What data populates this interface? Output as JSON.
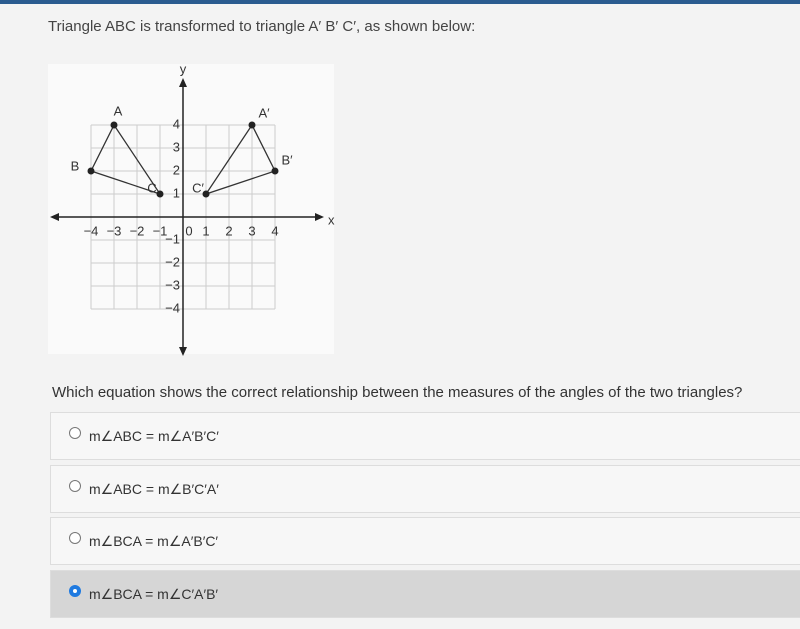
{
  "header": {
    "title": "Triangle ABC is transformed to triangle A′ B′ C′, as shown below:"
  },
  "graph": {
    "x_label": "x",
    "y_label": "y",
    "xticks": [
      {
        "value": -4,
        "label": "−4"
      },
      {
        "value": -3,
        "label": "−3"
      },
      {
        "value": -2,
        "label": "−2"
      },
      {
        "value": -1,
        "label": "−1"
      },
      0,
      1,
      2,
      3,
      4
    ],
    "yticks": [
      {
        "value": -4,
        "label": "−4"
      },
      {
        "value": -3,
        "label": "−3"
      },
      {
        "value": -2,
        "label": "−2"
      },
      {
        "value": -1,
        "label": "−1"
      },
      1,
      2,
      3,
      4
    ],
    "triangles": [
      {
        "vertices": [
          {
            "label": "A",
            "x": -3,
            "y": 4
          },
          {
            "label": "B",
            "x": -4,
            "y": 2
          },
          {
            "label": "C",
            "x": -1,
            "y": 1
          }
        ]
      },
      {
        "vertices": [
          {
            "label": "A′",
            "x": 3,
            "y": 4
          },
          {
            "label": "B′",
            "x": 4,
            "y": 2
          },
          {
            "label": "C′",
            "x": 1,
            "y": 1
          }
        ]
      }
    ]
  },
  "question": "Which equation shows the correct relationship between the measures of the angles of the two triangles?",
  "options": [
    {
      "text": "m∠ABC = m∠A′B′C′",
      "selected": false
    },
    {
      "text": "m∠ABC = m∠B′C′A′",
      "selected": false
    },
    {
      "text": "m∠BCA = m∠A′B′C′",
      "selected": false
    },
    {
      "text": "m∠BCA = m∠C′A′B′",
      "selected": true
    }
  ]
}
